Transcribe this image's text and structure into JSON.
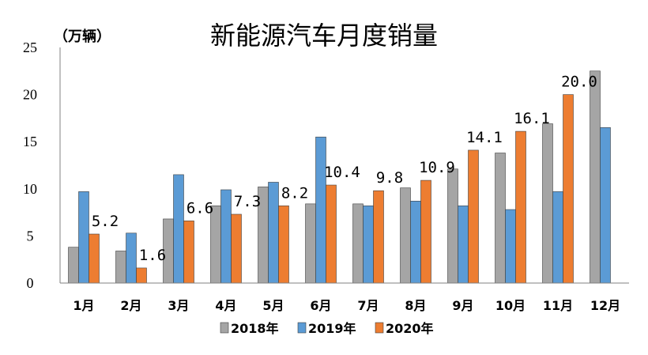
{
  "chart_data": {
    "type": "bar",
    "title": "新能源汽车月度销量",
    "unit_label": "（万辆）",
    "categories": [
      "1月",
      "2月",
      "3月",
      "4月",
      "5月",
      "6月",
      "7月",
      "8月",
      "9月",
      "10月",
      "11月",
      "12月"
    ],
    "series": [
      {
        "name": "2018年",
        "color": "#a5a5a5",
        "values": [
          3.8,
          3.4,
          6.8,
          8.2,
          10.2,
          8.4,
          8.4,
          10.1,
          12.1,
          13.8,
          16.9,
          22.5
        ]
      },
      {
        "name": "2019年",
        "color": "#5b9bd5",
        "values": [
          9.7,
          5.3,
          11.5,
          9.9,
          10.7,
          15.5,
          8.2,
          8.7,
          8.2,
          7.8,
          9.7,
          16.5
        ]
      },
      {
        "name": "2020年",
        "color": "#ed7d31",
        "values": [
          5.2,
          1.6,
          6.6,
          7.3,
          8.2,
          10.4,
          9.8,
          10.9,
          14.1,
          16.1,
          20.0,
          null
        ],
        "data_labels": [
          "5.2",
          "1.6",
          "6.6",
          "7.3",
          "8.2",
          "10.4",
          "9.8",
          "10.9",
          "14.1",
          "16.1",
          "20.0",
          ""
        ]
      }
    ],
    "ylim": [
      0,
      25
    ],
    "yticks": [
      0,
      5,
      10,
      15,
      20,
      25
    ],
    "ytick_labels": [
      "0",
      "5",
      "10",
      "15",
      "20",
      "25"
    ],
    "grid": false,
    "legend_position": "bottom"
  }
}
